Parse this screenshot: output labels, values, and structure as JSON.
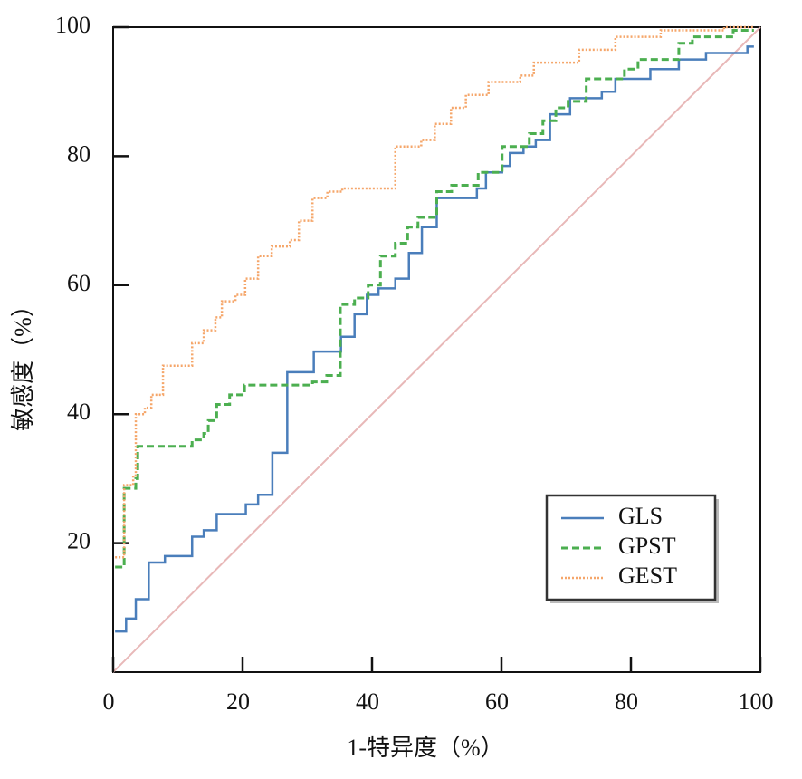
{
  "chart_data": {
    "type": "line",
    "step": true,
    "xlabel": "1-特异度（%）",
    "ylabel": "敏感度（%）",
    "xlim": [
      0,
      100
    ],
    "ylim": [
      0,
      100
    ],
    "xticks": [
      0,
      20,
      40,
      60,
      80,
      100
    ],
    "yticks": [
      20,
      40,
      60,
      80,
      100
    ],
    "legend": "lower right",
    "series": [
      {
        "name": "GLS",
        "color": "#4a7ebb",
        "dash": "none",
        "x": [
          0.3,
          2,
          2,
          3.5,
          3.5,
          5.5,
          5.5,
          8,
          8,
          12.2,
          12.2,
          14,
          14,
          16,
          16,
          20.5,
          20.5,
          22.4,
          22.4,
          24.6,
          24.6,
          26.9,
          26.9,
          31,
          31,
          35.2,
          35.2,
          37.3,
          37.3,
          39.2,
          39.2,
          41,
          41,
          43.6,
          43.6,
          45.7,
          45.7,
          47.7,
          47.7,
          50,
          50,
          56.2,
          56.2,
          57.6,
          57.6,
          60.1,
          60.1,
          61.3,
          61.3,
          63.4,
          63.4,
          65.3,
          65.3,
          67.5,
          67.5,
          70.6,
          70.6,
          75.5,
          75.5,
          77.6,
          77.6,
          83,
          83,
          87.4,
          87.4,
          91.6,
          91.6,
          98,
          98,
          99
        ],
        "values": [
          6.3,
          6.3,
          8.3,
          8.3,
          11.3,
          11.3,
          17,
          17,
          18,
          18,
          21,
          21,
          22,
          22,
          24.5,
          24.5,
          26,
          26,
          27.5,
          27.5,
          34,
          34,
          46.5,
          46.5,
          49.7,
          49.7,
          52,
          52,
          55.5,
          55.5,
          58.5,
          58.5,
          59.5,
          59.5,
          61,
          61,
          65,
          65,
          69,
          69,
          73.5,
          73.5,
          75,
          75,
          77.5,
          77.5,
          78.5,
          78.5,
          80.5,
          80.5,
          81.5,
          81.5,
          82.5,
          82.5,
          86.5,
          86.5,
          89,
          89,
          90,
          90,
          92,
          92,
          93.5,
          93.5,
          95,
          95,
          96,
          96,
          97,
          97
        ]
      },
      {
        "name": "GPST",
        "color": "#4caf50",
        "dash": "8 4",
        "x": [
          0.3,
          1.7,
          1.7,
          3.5,
          3.5,
          3.8,
          3.8,
          12.2,
          12.2,
          14,
          14,
          14.7,
          14.7,
          16,
          16,
          18,
          18,
          20.3,
          20.3,
          30.8,
          30.8,
          33,
          33,
          35.1,
          35.1,
          37.3,
          37.3,
          39.4,
          39.4,
          41.3,
          41.3,
          43.6,
          43.6,
          45.5,
          45.5,
          47.1,
          47.1,
          50,
          50,
          52.3,
          52.3,
          56.4,
          56.4,
          60.1,
          60.1,
          64.3,
          64.3,
          66.4,
          66.4,
          68.4,
          68.4,
          70.3,
          70.3,
          73.1,
          73.1,
          79,
          79,
          81.1,
          81.1,
          87.4,
          87.4,
          89.5,
          89.5,
          95.8,
          95.8,
          99
        ],
        "values": [
          16.3,
          16.3,
          28.5,
          28.5,
          30,
          30,
          35,
          35,
          36,
          36,
          37,
          37,
          39,
          39,
          41.5,
          41.5,
          43,
          43,
          44.5,
          44.5,
          45,
          45,
          46,
          46,
          57,
          57,
          58,
          58,
          60,
          60,
          64.5,
          64.5,
          66.5,
          66.5,
          69,
          69,
          70.5,
          70.5,
          74.5,
          74.5,
          75.5,
          75.5,
          77.5,
          77.5,
          81.5,
          81.5,
          83.5,
          83.5,
          85.5,
          85.5,
          87.5,
          87.5,
          88.5,
          88.5,
          92,
          92,
          93.5,
          93.5,
          95,
          95,
          97.5,
          97.5,
          98.5,
          98.5,
          99.5,
          99.5
        ]
      },
      {
        "name": "GEST",
        "color": "#f5a66a",
        "dash": "2 2",
        "x": [
          0.3,
          1.7,
          1.7,
          3.1,
          3.1,
          3.5,
          3.5,
          4.9,
          4.9,
          5.9,
          5.9,
          7.7,
          7.7,
          12.2,
          12.2,
          14,
          14,
          15.8,
          15.8,
          16.8,
          16.8,
          18.9,
          18.9,
          20.4,
          20.4,
          22.4,
          22.4,
          24.5,
          24.5,
          27.3,
          27.3,
          28.7,
          28.7,
          30.8,
          30.8,
          33.1,
          33.1,
          35.4,
          35.4,
          43.6,
          43.6,
          47.6,
          47.6,
          49.7,
          49.7,
          52.2,
          52.2,
          54.5,
          54.5,
          58,
          58,
          62.9,
          62.9,
          65,
          65,
          72,
          72,
          77.6,
          77.6,
          84.6,
          84.6,
          94.4,
          94.4,
          99
        ],
        "values": [
          17.8,
          17.8,
          29,
          29,
          30.5,
          30.5,
          40,
          40,
          41,
          41,
          43,
          43,
          47.5,
          47.5,
          51,
          51,
          53,
          53,
          55,
          55,
          57.5,
          57.5,
          58.5,
          58.5,
          61,
          61,
          64.5,
          64.5,
          66,
          66,
          67,
          67,
          70,
          70,
          73.5,
          73.5,
          74.5,
          74.5,
          75,
          75,
          81.5,
          81.5,
          82.5,
          82.5,
          85,
          85,
          87.5,
          87.5,
          89.5,
          89.5,
          91.5,
          91.5,
          92.5,
          92.5,
          94.5,
          94.5,
          96.5,
          96.5,
          98.5,
          98.5,
          99.5,
          99.5,
          100,
          100
        ]
      }
    ]
  }
}
